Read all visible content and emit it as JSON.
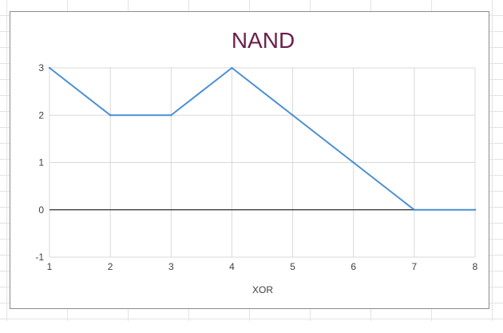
{
  "chart_data": {
    "type": "line",
    "title": "NAND",
    "xlabel": "XOR",
    "ylabel": "",
    "x": [
      1,
      2,
      3,
      4,
      5,
      6,
      7,
      8
    ],
    "xlim": [
      1,
      8
    ],
    "ylim": [
      -1,
      3
    ],
    "x_ticks": [
      "1",
      "2",
      "3",
      "4",
      "5",
      "6",
      "7",
      "8"
    ],
    "y_ticks": [
      "-1",
      "0",
      "1",
      "2",
      "3"
    ],
    "grid": true,
    "legend": "none",
    "series": [
      {
        "values": [
          3,
          2,
          2,
          3,
          2,
          1,
          0,
          0
        ],
        "color": "#4a8fd6"
      }
    ],
    "colors": {
      "title": "#6b1f4a",
      "grid": "#d9d9d9",
      "zero_line": "#000000"
    }
  }
}
